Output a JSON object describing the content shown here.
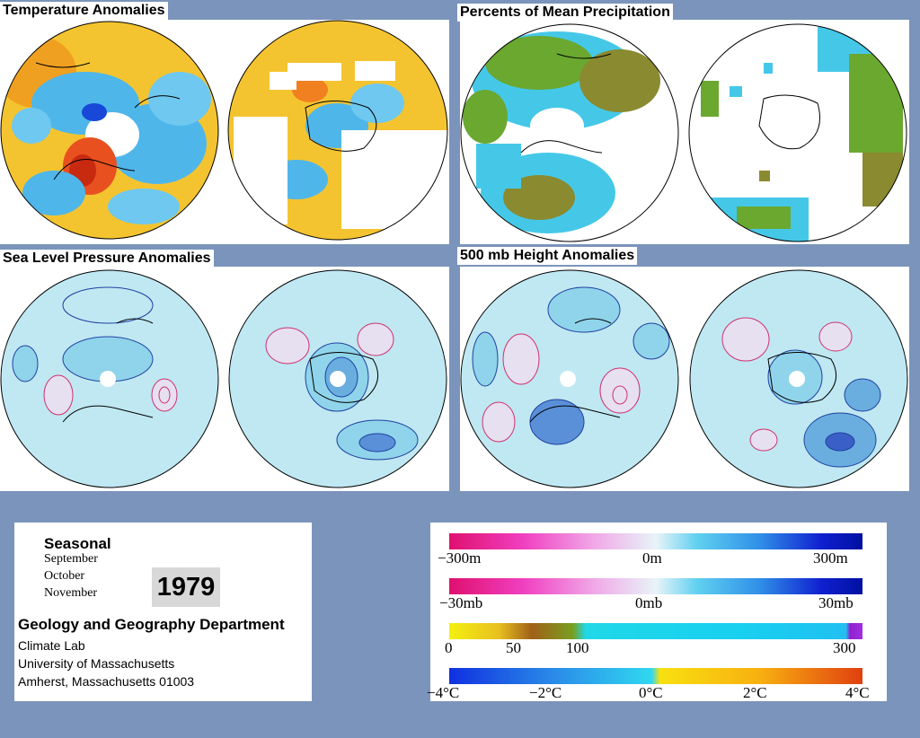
{
  "panels": {
    "temperature": {
      "title": "Temperature Anomalies"
    },
    "precipitation": {
      "title": "Percents of Mean Precipitation"
    },
    "pressure": {
      "title": "Sea Level Pressure Anomalies"
    },
    "height": {
      "title": "500 mb Height Anomalies"
    }
  },
  "info": {
    "period_type": "Seasonal",
    "months": [
      "September",
      "October",
      "November"
    ],
    "year": "1979",
    "department": "Geology and Geography Department",
    "lab": "Climate Lab",
    "university": "University of Massachusetts",
    "address": "Amherst, Massachusetts 01003"
  },
  "legends": {
    "height": {
      "labels": [
        "−300m",
        "0m",
        "300m"
      ]
    },
    "pressure": {
      "labels": [
        "−30mb",
        "0mb",
        "30mb"
      ]
    },
    "precip": {
      "labels": [
        "0",
        "50",
        "100",
        "300"
      ]
    },
    "temp": {
      "labels": [
        "−4°C",
        "−2°C",
        "0°C",
        "2°C",
        "4°C"
      ]
    }
  },
  "colors": {
    "background": "#7b94bb",
    "temp_warm": "#f4c430",
    "temp_cold": "#4fb6ea",
    "pressure_fill": "#bfe8f2",
    "contour_neg": "#d03070",
    "contour_pos": "#2040a0"
  }
}
